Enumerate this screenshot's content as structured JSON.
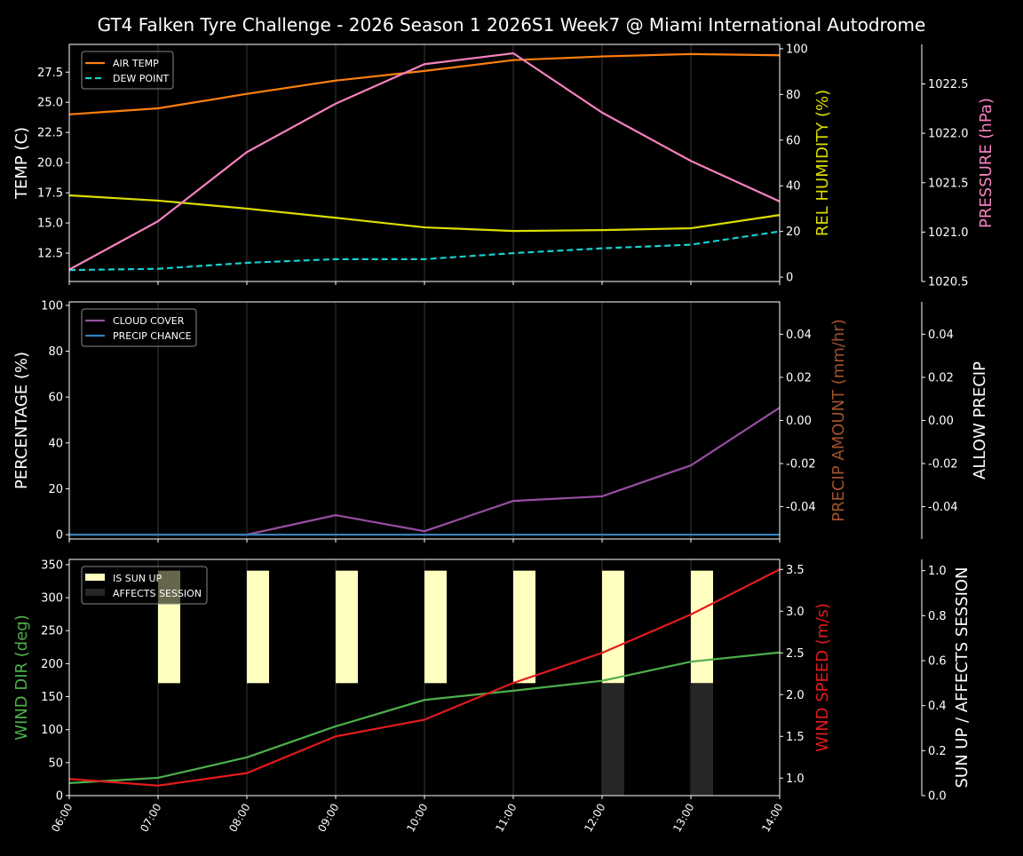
{
  "title": "GT4 Falken Tyre Challenge - 2026 Season 1 2026S1 Week7 @ Miami International Autodrome",
  "chart_data": [
    {
      "type": "line",
      "x": [
        "06:00",
        "07:00",
        "08:00",
        "09:00",
        "10:00",
        "11:00",
        "12:00",
        "13:00",
        "14:00"
      ],
      "grid": "vertical",
      "legend": "top-left",
      "axes": {
        "left": {
          "label": "TEMP (C)",
          "color": "#ffffff",
          "ticks": [
            12.5,
            15.0,
            17.5,
            20.0,
            22.5,
            25.0,
            27.5
          ],
          "ylim": [
            10.15,
            29.8
          ]
        },
        "right1": {
          "label": "REL HUMIDITY (%)",
          "color": "#dddd00",
          "ticks": [
            0,
            20,
            40,
            60,
            80,
            100
          ],
          "ylim": [
            -1.9,
            101.9
          ]
        },
        "right2": {
          "label": "PRESSURE (hPa)",
          "color": "#f781bf",
          "ticks": [
            1020.5,
            1021.0,
            1021.5,
            1022.0,
            1022.5
          ],
          "ylim": [
            1020.5,
            1022.9
          ]
        }
      },
      "series": [
        {
          "name": "AIR TEMP",
          "axis": "left",
          "color": "#ff7f0e",
          "dashed": false,
          "values": [
            24.0,
            24.5,
            25.7,
            26.8,
            27.6,
            28.5,
            28.8,
            29.0,
            28.9
          ]
        },
        {
          "name": "DEW POINT",
          "axis": "left",
          "color": "#17d0d0",
          "dashed": true,
          "values": [
            11.1,
            11.2,
            11.7,
            12.0,
            12.0,
            12.5,
            12.9,
            13.2,
            14.3
          ]
        },
        {
          "axis": "right1",
          "color": "#dddd00",
          "dashed": false,
          "values": [
            35.8,
            33.5,
            30.0,
            26.0,
            21.8,
            20.2,
            20.6,
            21.4,
            27.2
          ]
        },
        {
          "axis": "right2",
          "color": "#f781bf",
          "dashed": false,
          "values": [
            1020.62,
            1021.11,
            1021.81,
            1022.3,
            1022.7,
            1022.81,
            1022.21,
            1021.72,
            1021.31
          ]
        }
      ]
    },
    {
      "type": "line",
      "x": [
        "06:00",
        "07:00",
        "08:00",
        "09:00",
        "10:00",
        "11:00",
        "12:00",
        "13:00",
        "14:00"
      ],
      "grid": "vertical",
      "legend": "top-left",
      "axes": {
        "left": {
          "label": "PERCENTAGE (%)",
          "color": "#ffffff",
          "ticks": [
            0,
            20,
            40,
            60,
            80,
            100
          ],
          "ylim": [
            -1.9,
            101.5
          ]
        },
        "right1": {
          "label": "PRECIP AMOUNT (mm/hr)",
          "color": "#a0522d",
          "ticks": [
            -0.04,
            -0.02,
            0.0,
            0.02,
            0.04
          ],
          "ylim": [
            -0.055,
            0.055
          ]
        },
        "right2": {
          "label": "ALLOW PRECIP",
          "color": "#ffffff",
          "ticks": [
            -0.04,
            -0.02,
            0.0,
            0.02,
            0.04
          ],
          "ylim": [
            -0.055,
            0.055
          ]
        }
      },
      "series": [
        {
          "name": "CLOUD COVER",
          "axis": "left",
          "color": "#984ea3",
          "dashed": false,
          "values": [
            0,
            0,
            0,
            8.5,
            1.5,
            14.7,
            16.7,
            30.2,
            55.4
          ]
        },
        {
          "name": "PRECIP CHANCE",
          "axis": "left",
          "color": "#377eb8",
          "dashed": false,
          "values": [
            0,
            0,
            0,
            0,
            0,
            0,
            0,
            0,
            0
          ]
        }
      ]
    },
    {
      "type": "line",
      "x": [
        "06:00",
        "07:00",
        "08:00",
        "09:00",
        "10:00",
        "11:00",
        "12:00",
        "13:00",
        "14:00"
      ],
      "grid": "vertical",
      "legend": "top-left",
      "axes": {
        "left": {
          "label": "WIND DIR (deg)",
          "color": "#4daf4a",
          "ticks": [
            0,
            50,
            100,
            150,
            200,
            250,
            300,
            350
          ],
          "ylim": [
            0,
            358
          ]
        },
        "right1": {
          "label": "WIND SPEED (m/s)",
          "color": "#e41a1c",
          "ticks": [
            1.0,
            1.5,
            2.0,
            2.5,
            3.0,
            3.5
          ],
          "ylim": [
            0.79,
            3.62
          ]
        },
        "right2": {
          "label": "SUN UP / AFFECTS SESSION",
          "color": "#ffffff",
          "ticks": [
            0.0,
            0.2,
            0.4,
            0.6,
            0.8,
            1.0
          ],
          "ylim": [
            0,
            1.05
          ]
        }
      },
      "series": [
        {
          "axis": "left",
          "color": "#4daf4a",
          "dashed": false,
          "values": [
            19,
            27,
            58,
            105,
            145,
            159,
            174,
            203,
            217
          ]
        },
        {
          "axis": "right1",
          "color": "#e41a1c",
          "dashed": false,
          "values": [
            0.99,
            0.91,
            1.06,
            1.5,
            1.7,
            2.14,
            2.5,
            2.96,
            3.5
          ]
        }
      ],
      "bars": [
        {
          "name": "IS SUN UP",
          "color": "#ffffc0",
          "values": [
            0,
            1,
            1,
            1,
            1,
            1,
            1,
            1,
            0
          ]
        },
        {
          "name": "AFFECTS SESSION",
          "color": "#262626",
          "values": [
            0,
            0,
            0,
            0,
            0,
            0,
            1,
            1,
            0
          ]
        }
      ]
    }
  ]
}
